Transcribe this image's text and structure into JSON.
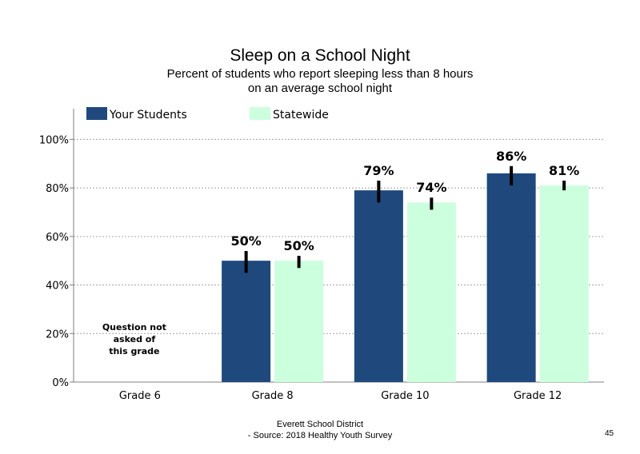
{
  "chart_data": {
    "type": "bar",
    "title": "Sleep on a School Night",
    "subtitle": [
      "Percent of students who report sleeping less than 8 hours",
      "on an average school night"
    ],
    "categories": [
      "Grade 6",
      "Grade 8",
      "Grade 10",
      "Grade 12"
    ],
    "series": [
      {
        "name": "Your Students",
        "color": "#1f497d",
        "values": [
          null,
          50,
          79,
          86
        ],
        "labels": [
          "",
          "50%",
          "79%",
          "86%"
        ],
        "err_low": [
          null,
          45,
          74,
          81
        ],
        "err_high": [
          null,
          54,
          83,
          89
        ]
      },
      {
        "name": "Statewide",
        "color": "#ccffdd",
        "values": [
          null,
          50,
          74,
          81
        ],
        "labels": [
          "",
          "50%",
          "74%",
          "81%"
        ],
        "err_low": [
          null,
          47,
          71,
          79
        ],
        "err_high": [
          null,
          52,
          76,
          83
        ]
      }
    ],
    "ylim": [
      0,
      110
    ],
    "yticks": [
      0,
      20,
      40,
      60,
      80,
      100
    ],
    "ytick_labels": [
      "0%",
      "20%",
      "40%",
      "60%",
      "80%",
      "100%"
    ],
    "grid": true,
    "legend_position": "top-left",
    "annotation": [
      "Question not",
      "asked of",
      "this grade"
    ]
  },
  "footer": {
    "line1": "Everett School District",
    "line2": "- Source: 2018 Healthy  Youth Survey",
    "page_number": "45"
  }
}
